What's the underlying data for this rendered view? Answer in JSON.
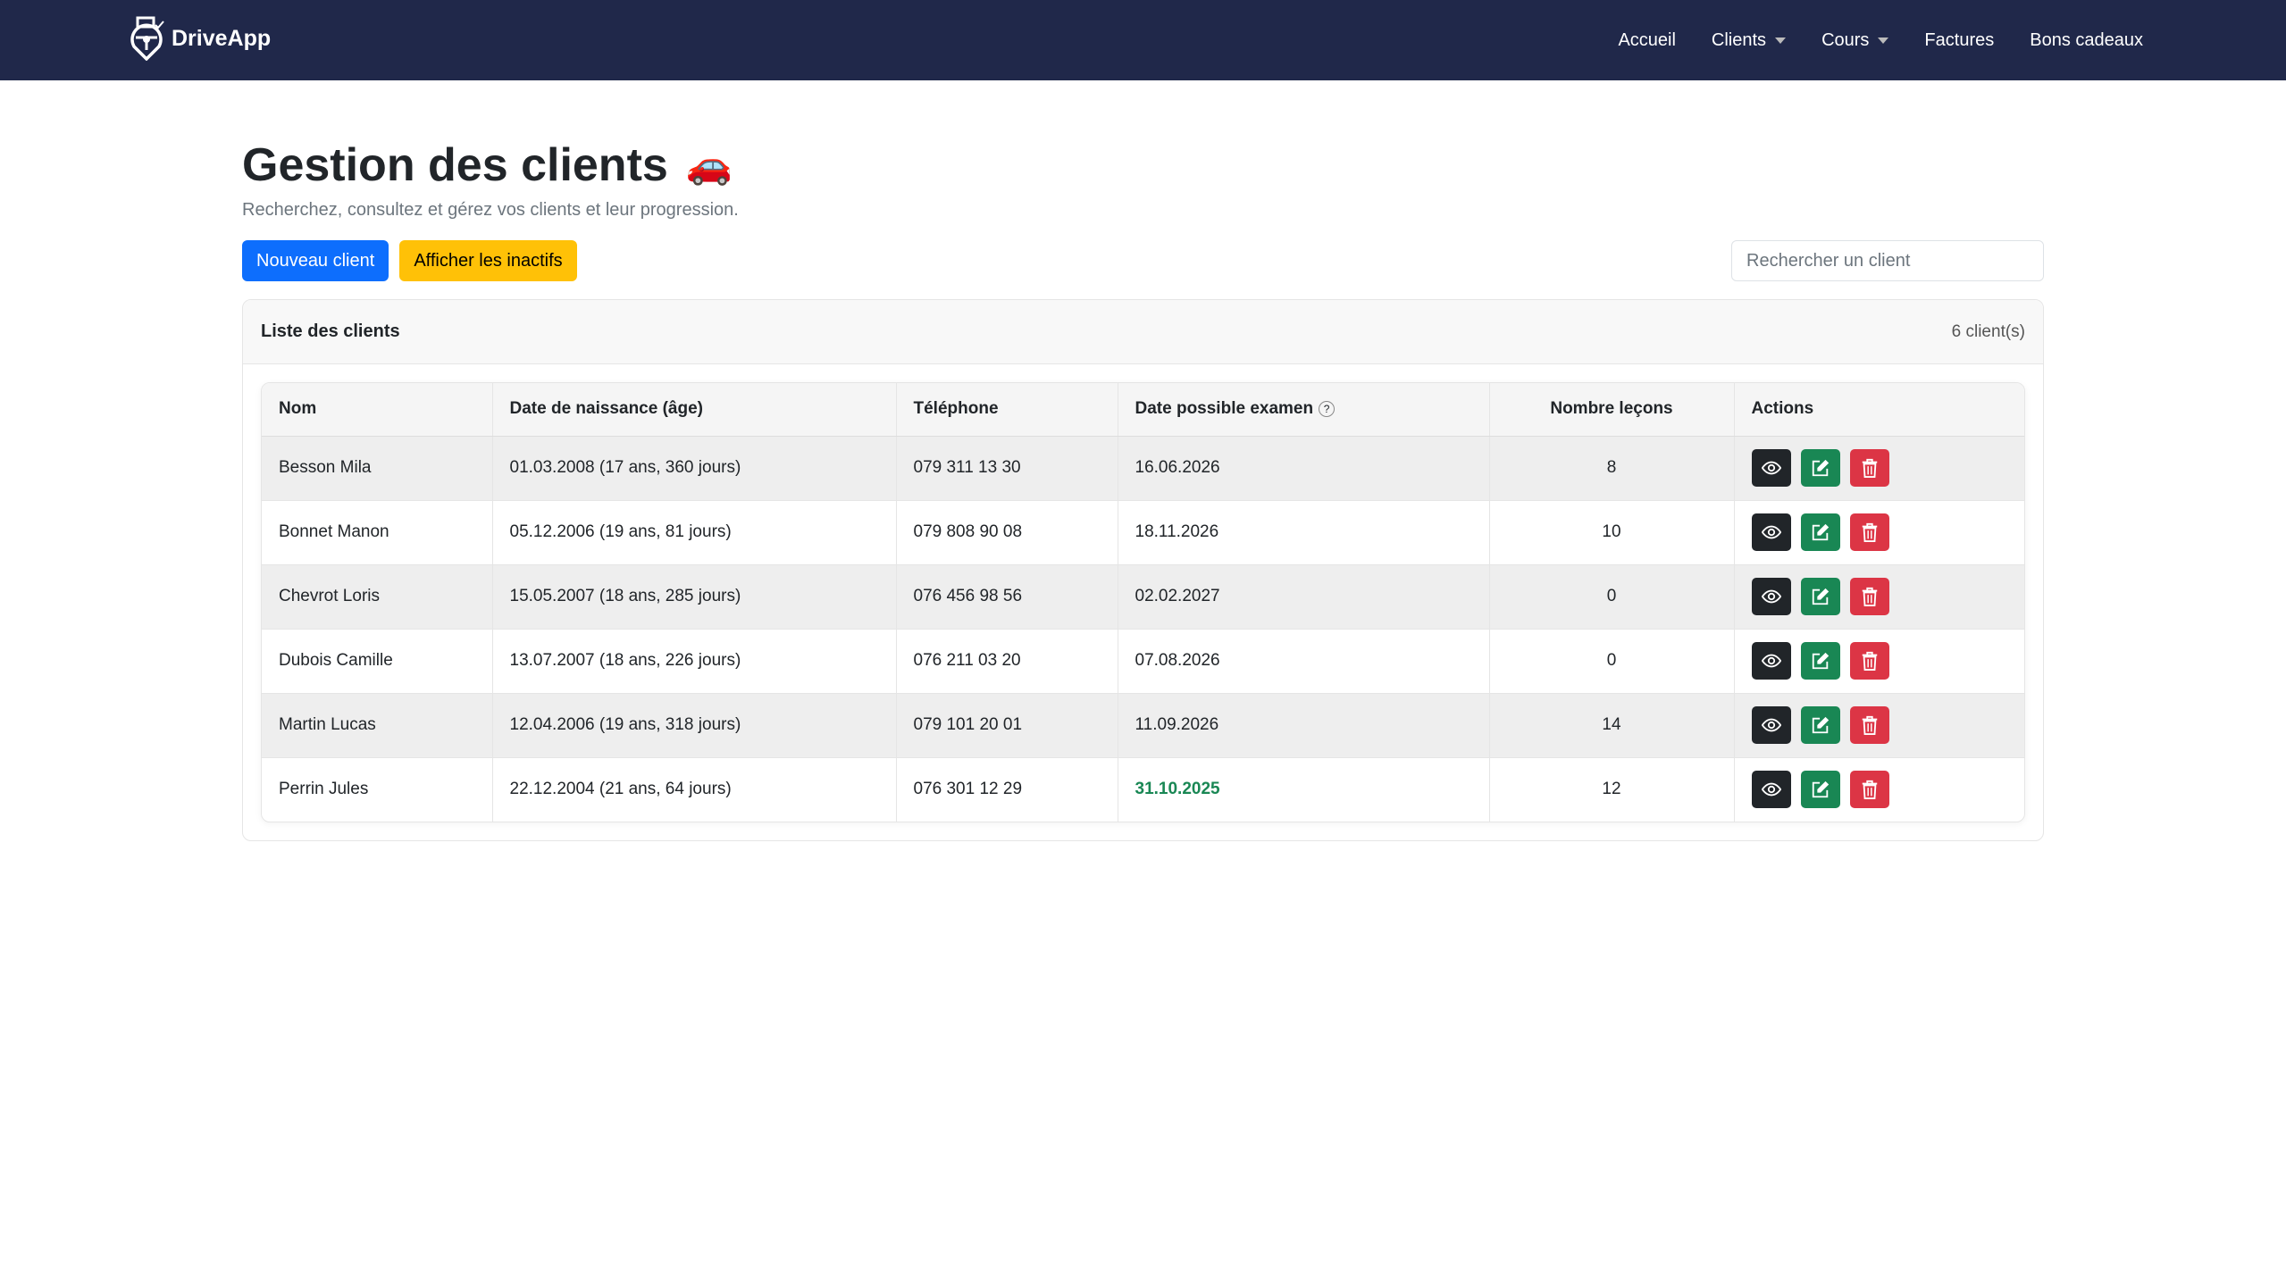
{
  "nav": {
    "brand": "DriveApp",
    "links": [
      {
        "label": "Accueil",
        "dropdown": false
      },
      {
        "label": "Clients",
        "dropdown": true
      },
      {
        "label": "Cours",
        "dropdown": true
      },
      {
        "label": "Factures",
        "dropdown": false
      },
      {
        "label": "Bons cadeaux",
        "dropdown": false
      }
    ]
  },
  "page": {
    "title": "Gestion des clients",
    "emoji": "🚗",
    "subtitle": "Recherchez, consultez et gérez vos clients et leur progression.",
    "new_client": "Nouveau client",
    "show_inactive": "Afficher les inactifs",
    "search_placeholder": "Rechercher un client"
  },
  "card": {
    "title": "Liste des clients",
    "count": "6 client(s)"
  },
  "table": {
    "headers": [
      "Nom",
      "Date de naissance (âge)",
      "Téléphone",
      "Date possible examen",
      "Nombre leçons",
      "Actions"
    ],
    "help": "?",
    "rows": [
      [
        "Besson Mila",
        "01.03.2008 (17 ans, 360 jours)",
        "079 311 13 30",
        "16.06.2026",
        "8"
      ],
      [
        "Bonnet Manon",
        "05.12.2006 (19 ans, 81 jours)",
        "079 808 90 08",
        "18.11.2026",
        "10"
      ],
      [
        "Chevrot Loris",
        "15.05.2007 (18 ans, 285 jours)",
        "076 456 98 56",
        "02.02.2027",
        "0"
      ],
      [
        "Dubois Camille",
        "13.07.2007 (18 ans, 226 jours)",
        "076 211 03 20",
        "07.08.2026",
        "0"
      ],
      [
        "Martin Lucas",
        "12.04.2006 (19 ans, 318 jours)",
        "079 101 20 01",
        "11.09.2026",
        "14"
      ],
      [
        "Perrin Jules",
        "22.12.2004 (21 ans, 64 jours)",
        "076 301 12 29",
        "31.10.2025",
        "12"
      ]
    ],
    "highlight_exam_row": 5
  },
  "colors": {
    "navbar": "#20284a",
    "primary": "#0d6efd",
    "warning": "#ffc107",
    "success": "#198754",
    "danger": "#dc3545",
    "dark": "#212529"
  }
}
